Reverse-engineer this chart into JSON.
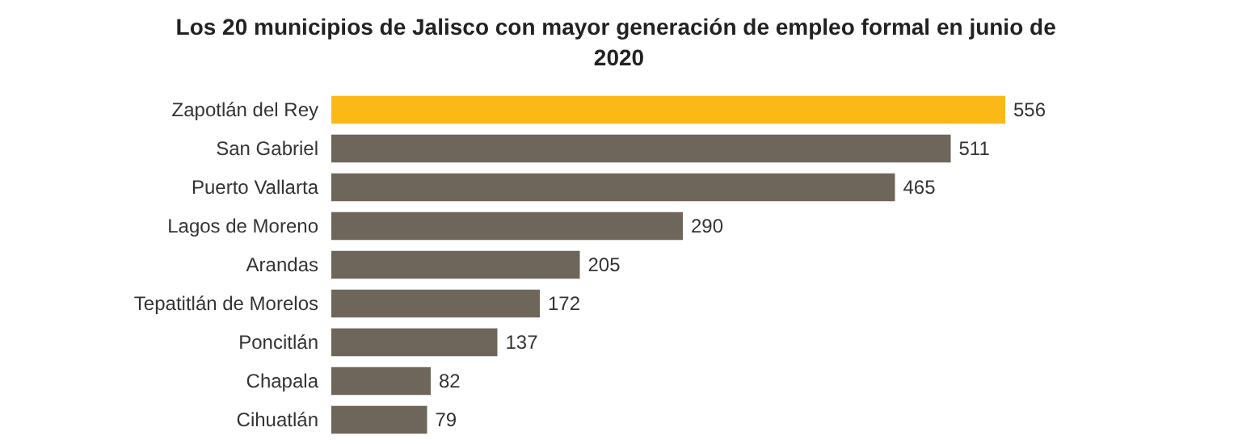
{
  "chart_data": {
    "type": "bar",
    "orientation": "horizontal",
    "title": "Los 20 municipios de Jalisco con mayor generación de empleo formal en junio de 2020",
    "categories": [
      "Zapotlán del Rey",
      "San Gabriel",
      "Puerto Vallarta",
      "Lagos de Moreno",
      "Arandas",
      "Tepatitlán de Morelos",
      "Poncitlán",
      "Chapala",
      "Cihuatlán"
    ],
    "values": [
      556,
      511,
      465,
      290,
      205,
      172,
      137,
      82,
      79
    ],
    "colors": [
      "#fbb918",
      "#6e665a",
      "#6e665a",
      "#6e665a",
      "#6e665a",
      "#6e665a",
      "#6e665a",
      "#6e665a",
      "#6e665a"
    ],
    "data_labels": true
  }
}
